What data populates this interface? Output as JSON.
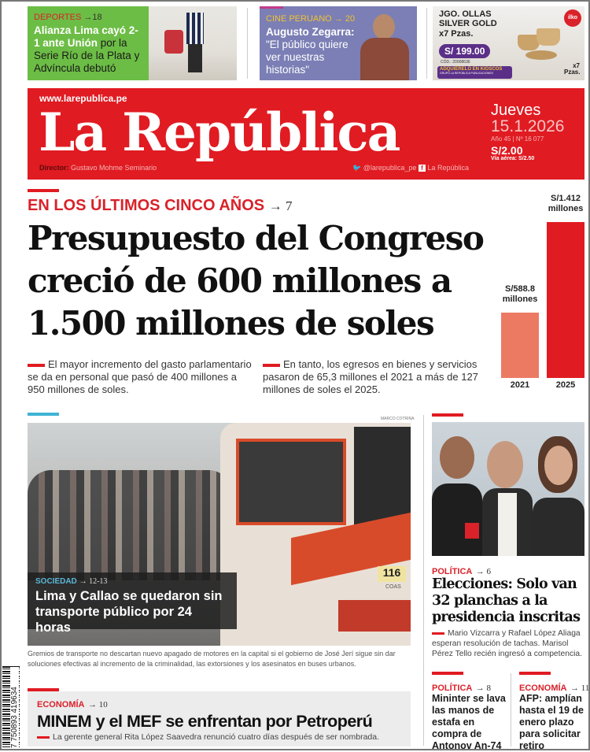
{
  "teasers": [
    {
      "section": "DEPORTES",
      "page": "→18",
      "title_bold": "Alianza Lima cayó 2-1 ante Unión",
      "title_rest": " por la Serie Río de la Plata y Advíncula debutó",
      "bg": "#6cbd45",
      "kicker_color": "#d9222a"
    },
    {
      "section": "CINE PERUANO",
      "page": "→ 20",
      "title_bold": "Augusto Zegarra:",
      "title_rest": " \"El público quiere ver nuestras historias\"",
      "bg": "#7b7fb5",
      "kicker_color": "#f2c12e"
    },
    {
      "product": "JGO. OLLAS SILVER GOLD",
      "qty": "x7 Pzas.",
      "price": "S/ 199.00",
      "code": "CÓD.: 20008636",
      "cta": "ADQUIÉRELO EN KIOSCOS",
      "cta_sub": "GRUPO LA REPÚBLICA PUBLICACIONES",
      "brand": "ilko",
      "qty_corner": "x7 Pzas."
    }
  ],
  "masthead": {
    "url": "www.larepublica.pe",
    "title": "La República",
    "director_label": "Director:",
    "director": "Gustavo Mohme Seminario",
    "twitter": "@larepublica_pe",
    "facebook": "La República",
    "day": "Jueves",
    "date": "15.1.2026",
    "issue": "Año 45 | Nº 16 077",
    "price": "S/2.00",
    "air_price": "Vía aérea: S/2.50",
    "color": "#e01b22"
  },
  "lead": {
    "kicker": "EN LOS ÚLTIMOS CINCO AÑOS",
    "page": "→ 7",
    "headline": "Presupuesto del Congreso creció de 600 millones a 1.500 millones de soles",
    "bullet1": "El mayor incremento del gasto parlamentario se da en personal que pasó de 400 millones a 950 millones de soles.",
    "bullet2": "En tanto, los egresos en bienes y servicios pasaron de 65,3 millones el 2021 a más de 127 millones de soles el 2025."
  },
  "chart_data": {
    "type": "bar",
    "categories": [
      "2021",
      "2025"
    ],
    "values": [
      588.8,
      1412
    ],
    "data_labels": [
      "S/588.8 millones",
      "S/1.412 millones"
    ],
    "colors": [
      "#ec7a63",
      "#e01b22"
    ],
    "grid": false
  },
  "photo_story": {
    "credit": "MARCO COTRINA",
    "section": "SOCIEDAD",
    "page": "→ 12-13",
    "headline": "Lima y Callao se quedaron sin transporte público por 24 horas",
    "caption": "Gremios de transporte no descartan nuevo apagado de motores en la capital si el gobierno de José Jerí sigue sin dar soluciones efectivas al incremento de la criminalidad, las extorsiones y los asesinatos en buses urbanos.",
    "bus_number": "116",
    "bus_label": "COAS"
  },
  "elections": {
    "section": "POLÍTICA",
    "page": "→ 6",
    "headline": "Elecciones: Solo van 32 planchas a la presidencia inscritas",
    "summary": "Mario Vizcarra y Rafael López Aliaga esperan resolución de tachas. Marisol Pérez Tello recién ingresó a competencia."
  },
  "briefs": [
    {
      "section": "POLÍTICA",
      "page": "→ 8",
      "headline": "Mininter se lava las manos de estafa en compra de Antonov An-74"
    },
    {
      "section": "ECONOMÍA",
      "page": "→ 11",
      "headline": "AFP: amplían hasta el 19 de enero plazo para solicitar retiro"
    }
  ],
  "economy": {
    "section": "ECONOMÍA",
    "page": "→ 10",
    "headline": "MINEM y el MEF se enfrentan por Petroperú",
    "summary": "La gerente general Rita López Saavedra renunció cuatro días después de ser nombrada."
  },
  "barcode": "7 750893 419634"
}
